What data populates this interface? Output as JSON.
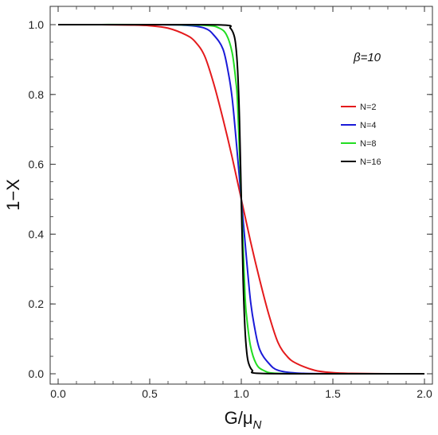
{
  "chart_data": {
    "type": "line",
    "xlabel": "G/μ",
    "xlabel_sub": "N",
    "ylabel": "1−X",
    "xlim": [
      0,
      2
    ],
    "ylim": [
      0,
      1
    ],
    "x_ticks": [
      "0.0",
      "0.5",
      "1.0",
      "1.5",
      "2.0"
    ],
    "y_ticks": [
      "0.0",
      "0.2",
      "0.4",
      "0.6",
      "0.8",
      "1.0"
    ],
    "grid": false,
    "legend_position": "upper-right",
    "annotation": "β=10",
    "series": [
      {
        "name": "N=2",
        "color": "#e41a1c",
        "x": [
          0.0,
          0.2,
          0.4,
          0.5,
          0.6,
          0.7,
          0.75,
          0.8,
          0.85,
          0.9,
          0.95,
          1.0,
          1.05,
          1.1,
          1.15,
          1.2,
          1.25,
          1.3,
          1.4,
          1.5,
          1.6,
          1.8,
          2.0
        ],
        "y": [
          1.0,
          1.0,
          0.999,
          0.997,
          0.99,
          0.97,
          0.95,
          0.91,
          0.83,
          0.73,
          0.62,
          0.5,
          0.38,
          0.27,
          0.17,
          0.09,
          0.05,
          0.03,
          0.01,
          0.003,
          0.001,
          0.0,
          0.0
        ]
      },
      {
        "name": "N=4",
        "color": "#1a1ad8",
        "x": [
          0.0,
          0.5,
          0.7,
          0.8,
          0.85,
          0.9,
          0.93,
          0.95,
          0.97,
          1.0,
          1.03,
          1.05,
          1.07,
          1.1,
          1.15,
          1.2,
          1.3,
          1.5,
          2.0
        ],
        "y": [
          1.0,
          1.0,
          0.998,
          0.99,
          0.97,
          0.93,
          0.86,
          0.79,
          0.68,
          0.5,
          0.32,
          0.21,
          0.14,
          0.07,
          0.03,
          0.01,
          0.002,
          0.0,
          0.0
        ]
      },
      {
        "name": "N=8",
        "color": "#22dd22",
        "x": [
          0.0,
          0.5,
          0.8,
          0.88,
          0.92,
          0.95,
          0.97,
          0.98,
          1.0,
          1.02,
          1.03,
          1.05,
          1.08,
          1.12,
          1.2,
          1.5,
          2.0
        ],
        "y": [
          1.0,
          1.0,
          0.998,
          0.99,
          0.97,
          0.92,
          0.84,
          0.77,
          0.5,
          0.23,
          0.16,
          0.08,
          0.03,
          0.01,
          0.001,
          0.0,
          0.0
        ]
      },
      {
        "name": "N=16",
        "color": "#000000",
        "x": [
          0.0,
          0.5,
          0.9,
          0.94,
          0.96,
          0.97,
          0.98,
          0.99,
          1.0,
          1.01,
          1.02,
          1.03,
          1.04,
          1.06,
          1.1,
          1.5,
          2.0
        ],
        "y": [
          1.0,
          1.0,
          0.999,
          0.99,
          0.97,
          0.94,
          0.87,
          0.73,
          0.5,
          0.27,
          0.13,
          0.06,
          0.03,
          0.01,
          0.001,
          0.0,
          0.0
        ]
      }
    ]
  }
}
